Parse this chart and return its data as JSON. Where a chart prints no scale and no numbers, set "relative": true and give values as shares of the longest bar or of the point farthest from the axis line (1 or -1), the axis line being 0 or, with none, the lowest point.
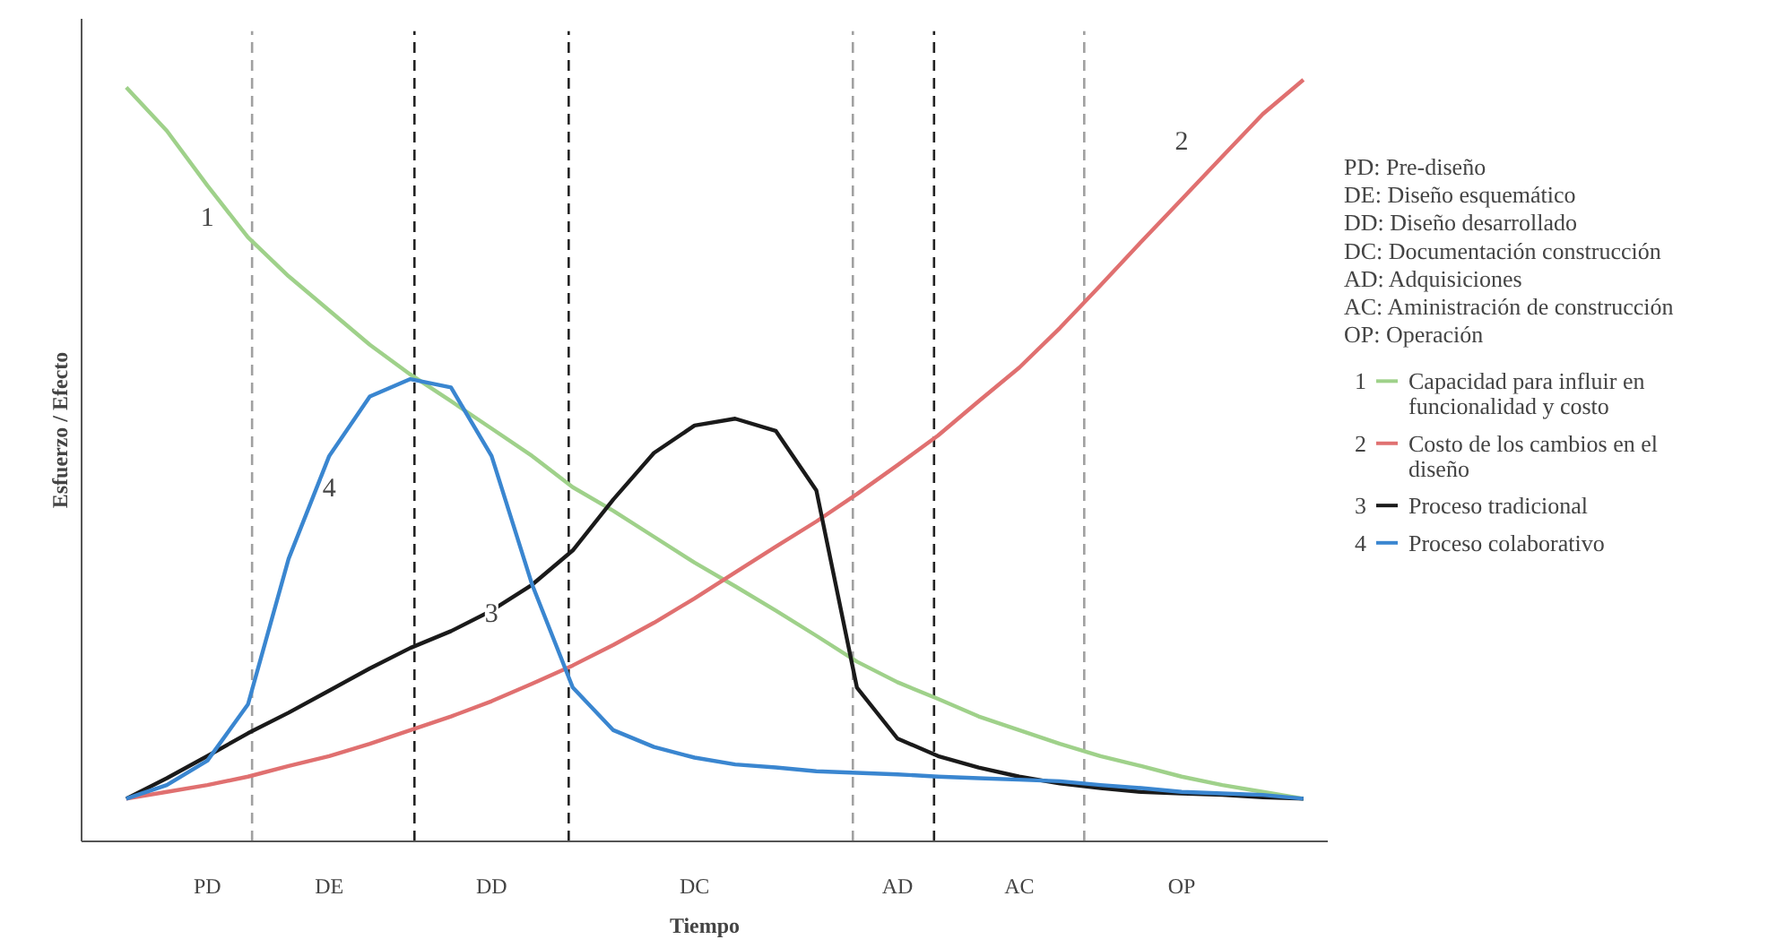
{
  "chart_data": {
    "type": "line",
    "relative": true,
    "xlabel": "Tiempo",
    "ylabel": "Esfuerzo / Efecto",
    "categories": [
      null,
      null,
      "PD",
      null,
      null,
      "DE",
      null,
      null,
      null,
      "DD",
      null,
      null,
      null,
      null,
      "DC",
      null,
      null,
      null,
      null,
      "AD",
      null,
      null,
      "AC",
      null,
      null,
      null,
      "OP",
      null,
      null,
      null
    ],
    "tick_labels": "x",
    "grid": "x",
    "legend": "right",
    "line_style": "solid",
    "marker": "none",
    "series": [
      {
        "name": "Capacidad para influir en funcionalidad y costo",
        "color": "#9fd18a",
        "values": [
          0.99,
          0.933,
          0.861,
          0.793,
          0.742,
          0.697,
          0.652,
          0.613,
          0.578,
          0.542,
          0.506,
          0.465,
          0.434,
          0.4,
          0.366,
          0.335,
          0.303,
          0.27,
          0.236,
          0.209,
          0.187,
          0.164,
          0.146,
          0.128,
          0.112,
          0.099,
          0.085,
          0.074,
          0.065,
          0.056
        ]
      },
      {
        "name": "Costo de los cambios en el diseño",
        "color": "#e07070",
        "values": [
          0.056,
          0.065,
          0.074,
          0.085,
          0.099,
          0.112,
          0.128,
          0.146,
          0.164,
          0.184,
          0.207,
          0.231,
          0.258,
          0.287,
          0.319,
          0.353,
          0.387,
          0.42,
          0.456,
          0.494,
          0.533,
          0.578,
          0.622,
          0.674,
          0.73,
          0.787,
          0.843,
          0.899,
          0.955,
          1.0
        ]
      },
      {
        "name": "Proceso tradicional",
        "color": "#1a1a1a",
        "values": [
          0.056,
          0.083,
          0.112,
          0.142,
          0.169,
          0.198,
          0.227,
          0.254,
          0.276,
          0.303,
          0.337,
          0.382,
          0.449,
          0.51,
          0.546,
          0.555,
          0.539,
          0.461,
          0.202,
          0.135,
          0.112,
          0.097,
          0.085,
          0.076,
          0.07,
          0.065,
          0.063,
          0.061,
          0.058,
          0.056
        ]
      },
      {
        "name": "Proceso colaborativo",
        "color": "#3a86d0",
        "values": [
          0.056,
          0.074,
          0.106,
          0.18,
          0.371,
          0.506,
          0.584,
          0.607,
          0.596,
          0.506,
          0.337,
          0.202,
          0.146,
          0.124,
          0.11,
          0.101,
          0.097,
          0.092,
          0.09,
          0.088,
          0.085,
          0.083,
          0.081,
          0.079,
          0.074,
          0.07,
          0.065,
          0.063,
          0.061,
          0.056
        ]
      }
    ],
    "annotations": [
      {
        "text": "1",
        "x": "PD",
        "y": 0.82
      },
      {
        "text": "2",
        "x": "OP",
        "y": 0.92
      },
      {
        "text": "3",
        "x": "DD",
        "y": 0.3
      },
      {
        "text": "4",
        "x": "DE",
        "y": 0.465
      },
      "PD: Pre-diseño",
      "DE: Diseño esquemático",
      "DD: Diseño desarrollado",
      "DC: Documentación construcción",
      "AD: Adquisiciones",
      "AC: Aministración de construcción",
      "OP: Operación"
    ]
  }
}
